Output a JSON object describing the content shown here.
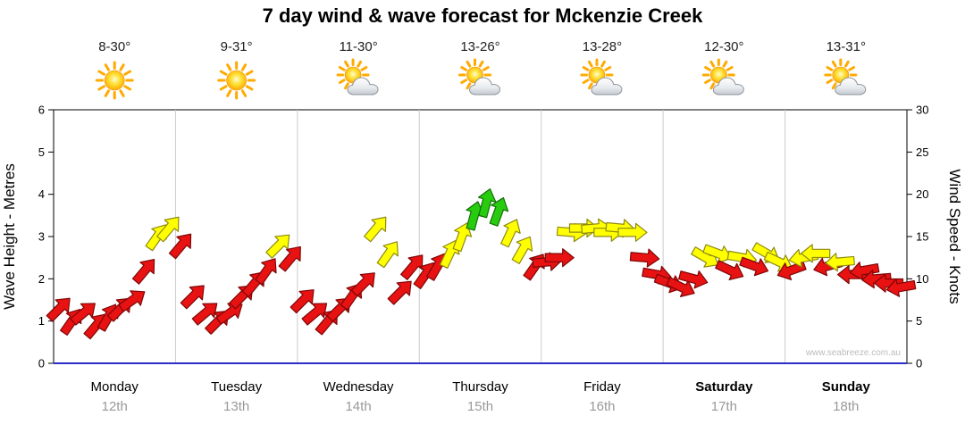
{
  "title": "7 day wind & wave forecast for Mckenzie Creek",
  "watermark": "www.seabreeze.com.au",
  "axes": {
    "left_label": "Wave Height - Metres",
    "left_ticks": [
      0,
      1,
      2,
      3,
      4,
      5,
      6
    ],
    "right_label": "Wind Speed - Knots",
    "right_ticks": [
      0,
      5,
      10,
      15,
      20,
      25,
      30
    ]
  },
  "chart_data": {
    "type": "scatter",
    "title": "7 day wind & wave forecast for Mckenzie Creek",
    "y_left": {
      "label": "Wave Height - Metres",
      "range": [
        0,
        6
      ]
    },
    "y_right": {
      "label": "Wind Speed - Knots",
      "range": [
        0,
        30
      ]
    },
    "legend": "arrow colour = wind strength band, arrow angle = wind direction",
    "colors": {
      "r": {
        "fill": "#e81212",
        "stroke": "#7d0606"
      },
      "y": {
        "fill": "#ffff00",
        "stroke": "#8f8a12"
      },
      "g": {
        "fill": "#28cc0f",
        "stroke": "#136e08"
      }
    },
    "days": [
      {
        "name": "Monday",
        "date": "12th",
        "temp": "8-30°",
        "icon": "sunny",
        "weekend": false,
        "winds": [
          {
            "s": 6.5,
            "d": 45,
            "c": "r"
          },
          {
            "s": 5,
            "d": 35,
            "c": "r"
          },
          {
            "s": 6,
            "d": 50,
            "c": "r"
          },
          {
            "s": 4.5,
            "d": 40,
            "c": "r"
          },
          {
            "s": 5.5,
            "d": 30,
            "c": "r"
          },
          {
            "s": 6.5,
            "d": 45,
            "c": "r"
          },
          {
            "s": 7.5,
            "d": 55,
            "c": "r"
          },
          {
            "s": 11,
            "d": 40,
            "c": "r"
          },
          {
            "s": 15,
            "d": 35,
            "c": "y"
          },
          {
            "s": 16,
            "d": 40,
            "c": "y"
          }
        ]
      },
      {
        "name": "Tuesday",
        "date": "13th",
        "temp": "9-31°",
        "icon": "sunny",
        "weekend": false,
        "winds": [
          {
            "s": 14,
            "d": 40,
            "c": "r"
          },
          {
            "s": 8,
            "d": 45,
            "c": "r"
          },
          {
            "s": 6,
            "d": 50,
            "c": "r"
          },
          {
            "s": 5,
            "d": 45,
            "c": "r"
          },
          {
            "s": 6,
            "d": 55,
            "c": "r"
          },
          {
            "s": 8,
            "d": 45,
            "c": "r"
          },
          {
            "s": 9.5,
            "d": 40,
            "c": "r"
          },
          {
            "s": 11,
            "d": 35,
            "c": "r"
          },
          {
            "s": 14,
            "d": 45,
            "c": "y"
          },
          {
            "s": 12.5,
            "d": 40,
            "c": "r"
          }
        ]
      },
      {
        "name": "Wednesday",
        "date": "14th",
        "temp": "11-30°",
        "icon": "sun-cloud",
        "weekend": false,
        "winds": [
          {
            "s": 7.5,
            "d": 45,
            "c": "r"
          },
          {
            "s": 6,
            "d": 50,
            "c": "r"
          },
          {
            "s": 5,
            "d": 40,
            "c": "r"
          },
          {
            "s": 6.5,
            "d": 45,
            "c": "r"
          },
          {
            "s": 8,
            "d": 35,
            "c": "r"
          },
          {
            "s": 9.5,
            "d": 45,
            "c": "r"
          },
          {
            "s": 16,
            "d": 40,
            "c": "y"
          },
          {
            "s": 13,
            "d": 35,
            "c": "y"
          },
          {
            "s": 8.5,
            "d": 45,
            "c": "r"
          },
          {
            "s": 11.5,
            "d": 40,
            "c": "r"
          }
        ]
      },
      {
        "name": "Thursday",
        "date": "15th",
        "temp": "13-26°",
        "icon": "sun-cloud",
        "weekend": false,
        "winds": [
          {
            "s": 10.5,
            "d": 35,
            "c": "r"
          },
          {
            "s": 11.5,
            "d": 30,
            "c": "r"
          },
          {
            "s": 13,
            "d": 25,
            "c": "y"
          },
          {
            "s": 15,
            "d": 20,
            "c": "y"
          },
          {
            "s": 17.5,
            "d": 15,
            "c": "g"
          },
          {
            "s": 19,
            "d": 15,
            "c": "g"
          },
          {
            "s": 18,
            "d": 20,
            "c": "g"
          },
          {
            "s": 15.5,
            "d": 25,
            "c": "y"
          },
          {
            "s": 13.5,
            "d": 30,
            "c": "y"
          },
          {
            "s": 11.5,
            "d": 35,
            "c": "r"
          }
        ]
      },
      {
        "name": "Friday",
        "date": "16th",
        "temp": "13-28°",
        "icon": "sun-cloud",
        "weekend": false,
        "winds": [
          {
            "s": 12,
            "d": 85,
            "c": "r"
          },
          {
            "s": 12.5,
            "d": 90,
            "c": "r"
          },
          {
            "s": 15.5,
            "d": 95,
            "c": "y"
          },
          {
            "s": 16,
            "d": 90,
            "c": "y"
          },
          {
            "s": 16,
            "d": 85,
            "c": "y"
          },
          {
            "s": 15.5,
            "d": 90,
            "c": "y"
          },
          {
            "s": 16,
            "d": 95,
            "c": "y"
          },
          {
            "s": 15.5,
            "d": 90,
            "c": "y"
          },
          {
            "s": 12.5,
            "d": 95,
            "c": "r"
          },
          {
            "s": 10.5,
            "d": 100,
            "c": "r"
          }
        ]
      },
      {
        "name": "Saturday",
        "date": "17th",
        "temp": "12-30°",
        "icon": "sun-cloud",
        "weekend": true,
        "winds": [
          {
            "s": 9.5,
            "d": 110,
            "c": "r"
          },
          {
            "s": 9,
            "d": 115,
            "c": "r"
          },
          {
            "s": 10,
            "d": 105,
            "c": "r"
          },
          {
            "s": 12.5,
            "d": 120,
            "c": "y"
          },
          {
            "s": 13,
            "d": 110,
            "c": "y"
          },
          {
            "s": 11,
            "d": 115,
            "c": "r"
          },
          {
            "s": 12.5,
            "d": 100,
            "c": "y"
          },
          {
            "s": 11.5,
            "d": 110,
            "c": "r"
          },
          {
            "s": 13,
            "d": 120,
            "c": "y"
          },
          {
            "s": 12,
            "d": 115,
            "c": "y"
          }
        ]
      },
      {
        "name": "Sunday",
        "date": "18th",
        "temp": "13-31°",
        "icon": "sun-cloud",
        "weekend": true,
        "winds": [
          {
            "s": 11,
            "d": 250,
            "c": "r"
          },
          {
            "s": 12.5,
            "d": 260,
            "c": "y"
          },
          {
            "s": 13,
            "d": 270,
            "c": "y"
          },
          {
            "s": 11.5,
            "d": 255,
            "c": "r"
          },
          {
            "s": 12,
            "d": 265,
            "c": "y"
          },
          {
            "s": 10.5,
            "d": 270,
            "c": "r"
          },
          {
            "s": 11,
            "d": 260,
            "c": "r"
          },
          {
            "s": 10,
            "d": 265,
            "c": "r"
          },
          {
            "s": 9.5,
            "d": 270,
            "c": "r"
          },
          {
            "s": 9,
            "d": 260,
            "c": "r"
          }
        ]
      }
    ]
  }
}
